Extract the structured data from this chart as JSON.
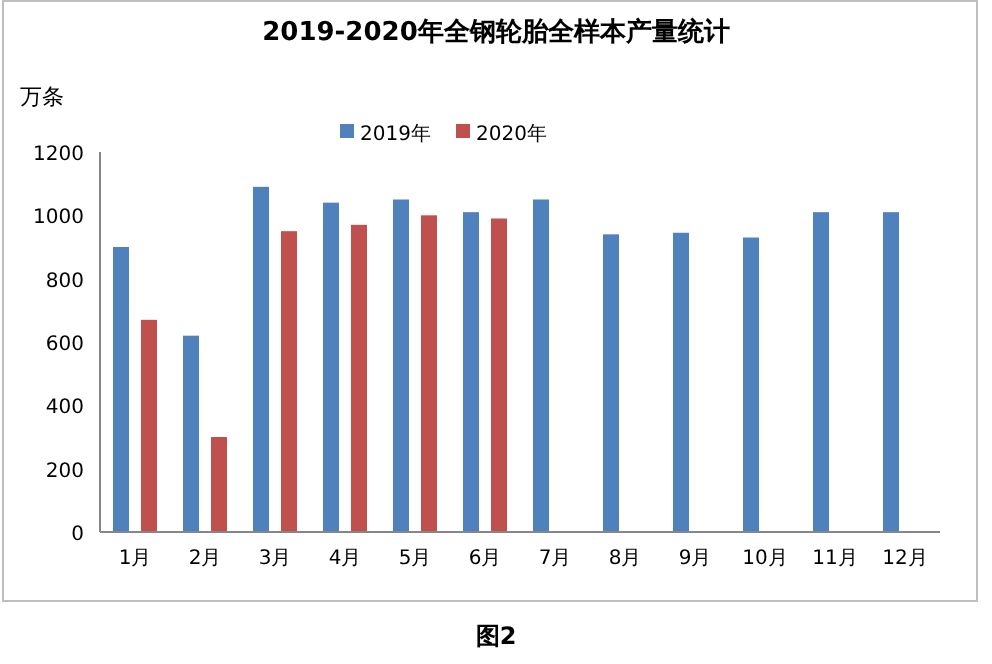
{
  "chart_data": {
    "type": "bar",
    "title": "2019-2020年全钢轮胎全样本产量统计",
    "ylabel": "万条",
    "categories": [
      "1月",
      "2月",
      "3月",
      "4月",
      "5月",
      "6月",
      "7月",
      "8月",
      "9月",
      "10月",
      "11月",
      "12月"
    ],
    "series": [
      {
        "name": "2019年",
        "color": "#4f81bd",
        "values": [
          900,
          620,
          1090,
          1040,
          1050,
          1010,
          1050,
          940,
          945,
          930,
          1010,
          1010
        ]
      },
      {
        "name": "2020年",
        "color": "#c0504d",
        "values": [
          670,
          300,
          950,
          970,
          1000,
          990,
          null,
          null,
          null,
          null,
          null,
          null
        ]
      }
    ],
    "ylim": [
      0,
      1200
    ],
    "yticks": [
      0,
      200,
      400,
      600,
      800,
      1000,
      1200
    ],
    "legend": "top",
    "annotations": [
      "图2"
    ]
  }
}
